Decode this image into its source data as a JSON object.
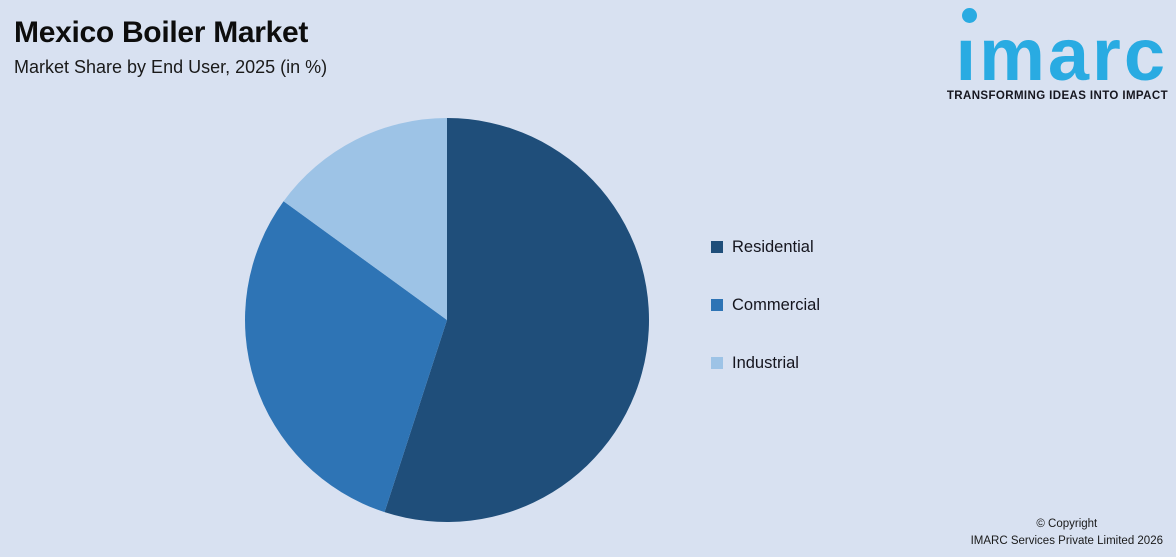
{
  "header": {
    "title": "Mexico Boiler Market",
    "subtitle": "Market Share by End User, 2025 (in %)"
  },
  "logo": {
    "wordmark": "imarc",
    "tagline": "TRANSFORMING IDEAS INTO IMPACT",
    "brand_color": "#29ABE2"
  },
  "chart_data": {
    "type": "pie",
    "title": "Mexico Boiler Market",
    "subtitle": "Market Share by End User, 2025 (in %)",
    "unit": "%",
    "categories": [
      "Residential",
      "Commercial",
      "Industrial"
    ],
    "values": [
      55,
      30,
      15
    ],
    "colors": [
      "#1F4E7A",
      "#2E74B5",
      "#9DC3E6"
    ],
    "start_angle_deg": 0,
    "direction": "clockwise",
    "legend_position": "right",
    "data_labels": false
  },
  "footer": {
    "copyright_line1": "© Copyright",
    "copyright_line2": "IMARC Services Private Limited 2026"
  },
  "theme": {
    "background": "#D8E1F1"
  }
}
